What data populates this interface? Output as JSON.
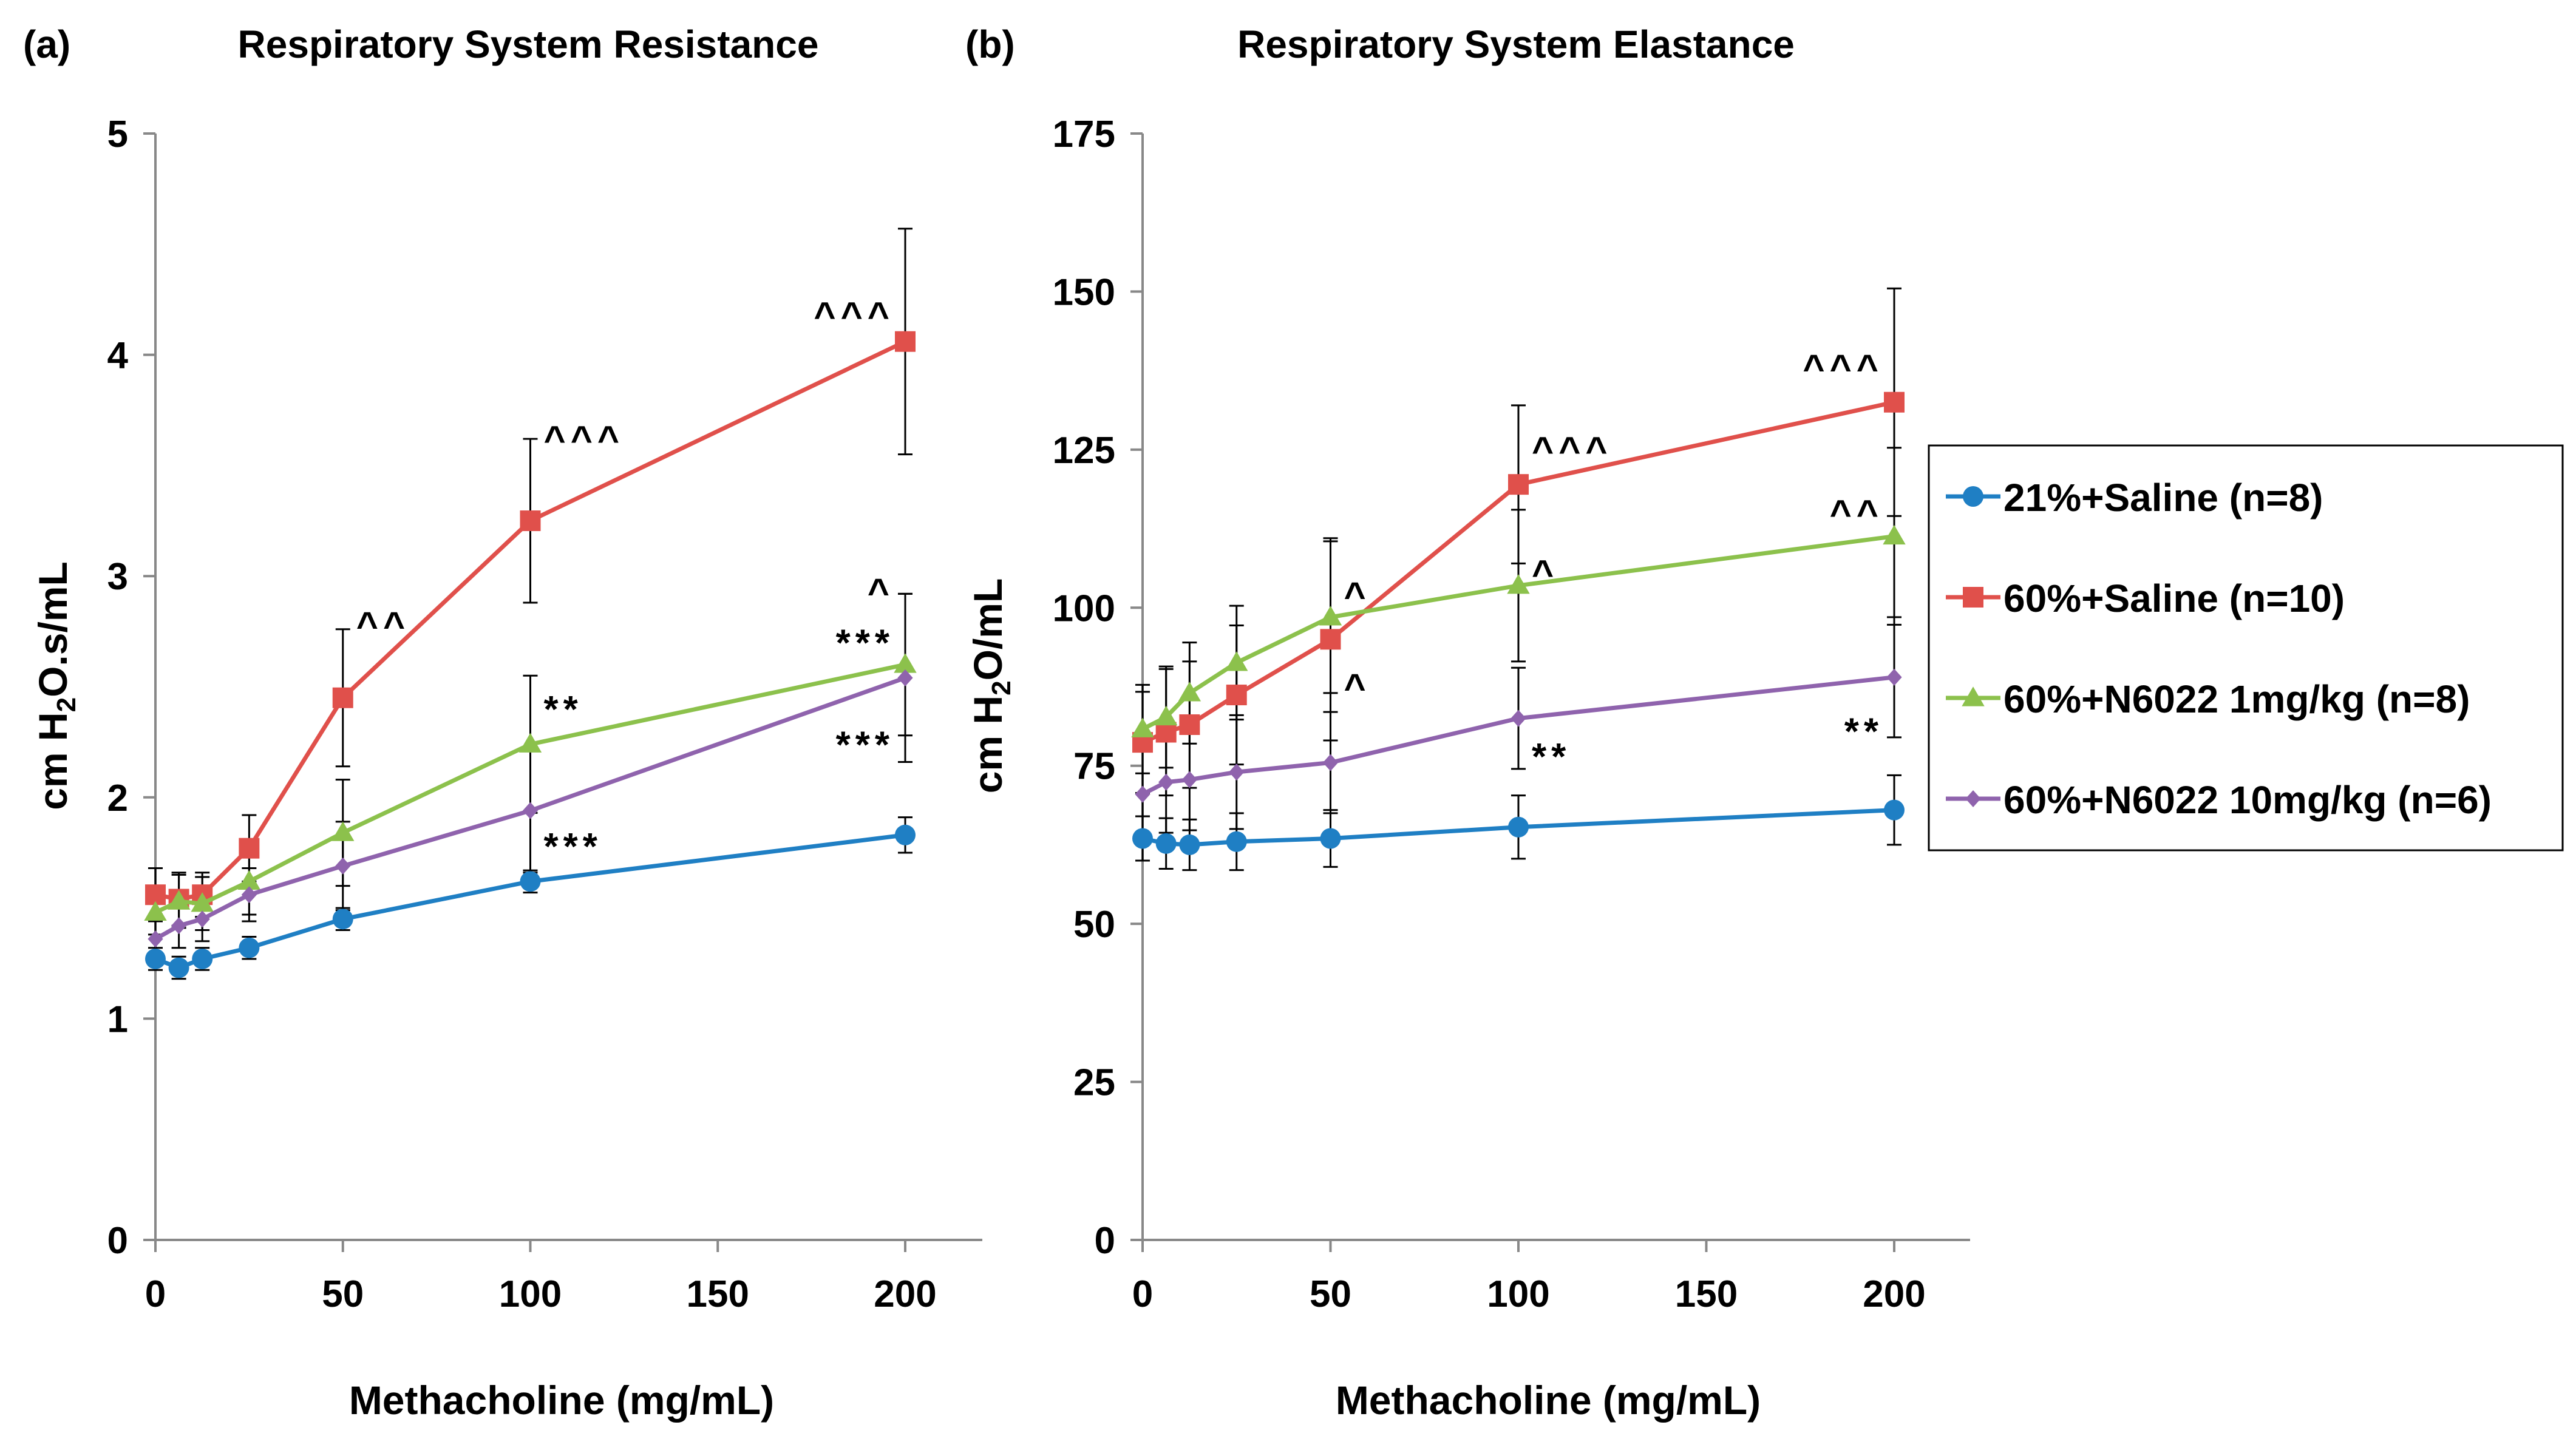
{
  "legend": {
    "placement": "right",
    "entries": [
      {
        "name": "21%+Saline (n=8)",
        "color": "#1f7fc4",
        "marker": "circle"
      },
      {
        "name": "60%+Saline (n=10)",
        "color": "#e0504b",
        "marker": "square"
      },
      {
        "name": "60%+N6022 1mg/kg (n=8)",
        "color": "#8cc14c",
        "marker": "triangle"
      },
      {
        "name": "60%+N6022 10mg/kg (n=6)",
        "color": "#8f63ad",
        "marker": "diamond"
      }
    ]
  },
  "chart_data": [
    {
      "type": "line",
      "panel_label": "(a)",
      "title": "Respiratory System Resistance",
      "xlabel": "Methacholine (mg/mL)",
      "ylabel": "cm H2O.s/mL",
      "xlim": [
        0,
        200
      ],
      "ylim": [
        0,
        5
      ],
      "xticks": [
        0,
        50,
        100,
        150,
        200
      ],
      "yticks": [
        0,
        1,
        2,
        3,
        4,
        5
      ],
      "grid": false,
      "x": [
        0,
        6.25,
        12.5,
        25,
        50,
        100,
        200
      ],
      "series": [
        {
          "name": "21%+Saline (n=8)",
          "values": [
            1.27,
            1.23,
            1.27,
            1.32,
            1.45,
            1.62,
            1.83
          ],
          "error": [
            0.05,
            0.05,
            0.05,
            0.05,
            0.05,
            0.05,
            0.08
          ]
        },
        {
          "name": "60%+Saline (n=10)",
          "values": [
            1.56,
            1.54,
            1.56,
            1.77,
            2.45,
            3.25,
            4.06
          ],
          "error": [
            0.12,
            0.12,
            0.1,
            0.15,
            0.31,
            0.37,
            0.51
          ]
        },
        {
          "name": "60%+N6022 1mg/kg (n=8)",
          "values": [
            1.48,
            1.53,
            1.52,
            1.62,
            1.84,
            2.24,
            2.6
          ],
          "error": [
            0.1,
            0.12,
            0.12,
            0.15,
            0.24,
            0.31,
            0.32
          ]
        },
        {
          "name": "60%+N6022 10mg/kg (n=6)",
          "values": [
            1.36,
            1.42,
            1.45,
            1.56,
            1.69,
            1.94,
            2.54
          ],
          "error": [
            0.08,
            0.1,
            0.1,
            0.12,
            0.2,
            0.28,
            0.38
          ]
        }
      ],
      "annotations": [
        {
          "text": "^^",
          "x": 50,
          "y": 2.78,
          "side": "right"
        },
        {
          "text": "^^^",
          "x": 100,
          "y": 3.62,
          "side": "right"
        },
        {
          "text": "^^^",
          "x": 200,
          "y": 4.18,
          "side": "left"
        },
        {
          "text": "**",
          "x": 100,
          "y": 2.4,
          "side": "right"
        },
        {
          "text": "***",
          "x": 100,
          "y": 1.78,
          "side": "right"
        },
        {
          "text": "^",
          "x": 200,
          "y": 2.93,
          "side": "left"
        },
        {
          "text": "***",
          "x": 200,
          "y": 2.7,
          "side": "left"
        },
        {
          "text": "***",
          "x": 200,
          "y": 2.24,
          "side": "left"
        }
      ]
    },
    {
      "type": "line",
      "panel_label": "(b)",
      "title": "Respiratory System Elastance",
      "xlabel": "Methacholine (mg/mL)",
      "ylabel": "cm H2O/mL",
      "xlim": [
        0,
        200
      ],
      "ylim": [
        0,
        175
      ],
      "xticks": [
        0,
        50,
        100,
        150,
        200
      ],
      "yticks": [
        0,
        25,
        50,
        75,
        100,
        125,
        150,
        175
      ],
      "grid": false,
      "x": [
        0,
        6.25,
        12.5,
        25,
        50,
        100,
        200
      ],
      "series": [
        {
          "name": "21%+Saline (n=8)",
          "values": [
            63.5,
            62.7,
            62.5,
            63,
            63.5,
            65.3,
            68
          ],
          "error": [
            3.5,
            4,
            4,
            4.5,
            4.5,
            5,
            5.5
          ]
        },
        {
          "name": "60%+Saline (n=10)",
          "values": [
            78.7,
            80.3,
            81.5,
            86.2,
            95,
            119.5,
            132.5
          ],
          "error": [
            8,
            10,
            10,
            11,
            16,
            12.5,
            18
          ]
        },
        {
          "name": "60%+N6022 1mg/kg (n=8)",
          "values": [
            80.8,
            82.7,
            86.5,
            91.3,
            98.5,
            103.5,
            111.3
          ],
          "error": [
            7,
            8,
            8,
            9,
            12,
            12,
            14
          ]
        },
        {
          "name": "60%+N6022 10mg/kg (n=6)",
          "values": [
            70.5,
            72.4,
            72.8,
            74,
            75.5,
            82.5,
            89
          ],
          "error": [
            8,
            8,
            8,
            9,
            8,
            8,
            9.5
          ]
        }
      ],
      "annotations": [
        {
          "text": "^^^",
          "x": 200,
          "y": 138,
          "side": "left"
        },
        {
          "text": "^^^",
          "x": 100,
          "y": 125,
          "side": "right"
        },
        {
          "text": "^^",
          "x": 200,
          "y": 115,
          "side": "left"
        },
        {
          "text": "^",
          "x": 100,
          "y": 105.5,
          "side": "right"
        },
        {
          "text": "^",
          "x": 50,
          "y": 102,
          "side": "right"
        },
        {
          "text": "^",
          "x": 50,
          "y": 87.5,
          "side": "right"
        },
        {
          "text": "**",
          "x": 100,
          "y": 76.5,
          "side": "right"
        },
        {
          "text": "**",
          "x": 200,
          "y": 80.5,
          "side": "left"
        }
      ]
    }
  ]
}
